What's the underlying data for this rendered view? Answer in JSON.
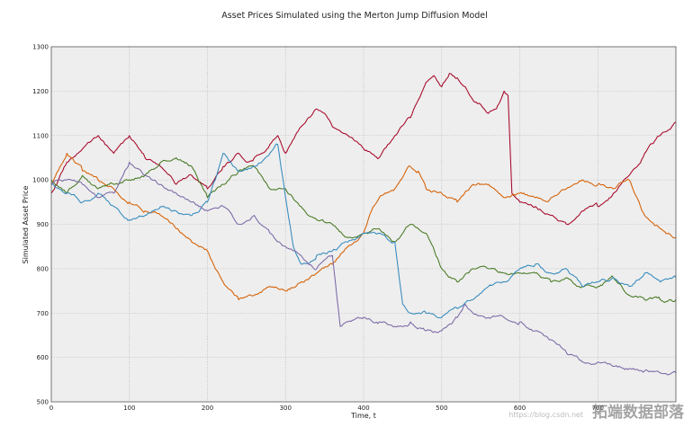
{
  "watermark": {
    "url": "https://blog.csdn.net",
    "text": "拓端数据部落"
  },
  "chart_data": {
    "type": "line",
    "title": "Asset Prices Simulated using the Merton Jump Diffusion Model",
    "xlabel": "Time, t",
    "ylabel": "Simulated Asset Price",
    "xlim": [
      0,
      800
    ],
    "ylim": [
      500,
      1300
    ],
    "xticks": [
      0,
      100,
      200,
      300,
      400,
      500,
      600,
      700
    ],
    "yticks": [
      500,
      600,
      700,
      800,
      900,
      1000,
      1100,
      1200,
      1300
    ],
    "grid": true,
    "background": "#eeeeee",
    "series": [
      {
        "color": "#a60628",
        "x": [
          0,
          20,
          40,
          60,
          80,
          100,
          120,
          140,
          160,
          180,
          200,
          220,
          240,
          250,
          260,
          270,
          280,
          290,
          300,
          320,
          340,
          350,
          360,
          370,
          380,
          400,
          420,
          440,
          460,
          470,
          480,
          490,
          500,
          510,
          520,
          530,
          540,
          550,
          560,
          570,
          580,
          585,
          590,
          595,
          600,
          620,
          640,
          660,
          670,
          680,
          700,
          720,
          740,
          760,
          780,
          800
        ],
        "values": [
          970,
          1040,
          1070,
          1100,
          1060,
          1100,
          1050,
          1030,
          990,
          1010,
          980,
          1030,
          1060,
          1040,
          1050,
          1060,
          1080,
          1100,
          1060,
          1120,
          1160,
          1150,
          1120,
          1110,
          1100,
          1070,
          1050,
          1100,
          1140,
          1180,
          1220,
          1235,
          1210,
          1240,
          1230,
          1210,
          1180,
          1170,
          1150,
          1160,
          1200,
          1190,
          970,
          960,
          950,
          940,
          920,
          900,
          910,
          930,
          940,
          970,
          1010,
          1060,
          1100,
          1130
        ]
      },
      {
        "color": "#d55e00",
        "x": [
          0,
          20,
          40,
          60,
          80,
          100,
          120,
          140,
          160,
          180,
          200,
          210,
          220,
          240,
          260,
          280,
          300,
          320,
          340,
          360,
          380,
          400,
          410,
          420,
          440,
          460,
          470,
          480,
          500,
          520,
          540,
          560,
          580,
          600,
          620,
          640,
          660,
          680,
          700,
          720,
          740,
          760,
          780,
          800
        ],
        "values": [
          990,
          1060,
          1020,
          1000,
          980,
          950,
          930,
          920,
          890,
          860,
          840,
          800,
          770,
          730,
          740,
          760,
          750,
          770,
          790,
          810,
          850,
          880,
          930,
          960,
          980,
          1030,
          1020,
          980,
          970,
          950,
          990,
          990,
          960,
          970,
          960,
          960,
          980,
          1000,
          990,
          980,
          1000,
          920,
          890,
          870
        ]
      },
      {
        "color": "#467821",
        "x": [
          0,
          20,
          40,
          60,
          80,
          100,
          120,
          140,
          160,
          180,
          200,
          220,
          240,
          260,
          280,
          300,
          320,
          340,
          360,
          380,
          400,
          420,
          440,
          460,
          480,
          500,
          520,
          540,
          560,
          580,
          600,
          620,
          640,
          660,
          680,
          700,
          720,
          740,
          760,
          780,
          800
        ],
        "values": [
          1000,
          970,
          1010,
          980,
          990,
          1000,
          1010,
          1040,
          1050,
          1030,
          960,
          990,
          1020,
          1030,
          980,
          980,
          940,
          910,
          900,
          870,
          880,
          890,
          860,
          900,
          880,
          800,
          770,
          800,
          800,
          790,
          790,
          790,
          770,
          780,
          760,
          760,
          780,
          740,
          730,
          730,
          730
        ]
      },
      {
        "color": "#348abd",
        "x": [
          0,
          20,
          40,
          60,
          80,
          100,
          120,
          140,
          160,
          180,
          200,
          210,
          220,
          240,
          260,
          280,
          290,
          300,
          310,
          320,
          340,
          360,
          380,
          400,
          420,
          440,
          450,
          460,
          480,
          500,
          520,
          540,
          560,
          580,
          600,
          620,
          640,
          660,
          680,
          700,
          720,
          740,
          760,
          780,
          800
        ],
        "values": [
          990,
          970,
          950,
          970,
          940,
          910,
          920,
          940,
          930,
          920,
          950,
          1000,
          1060,
          1020,
          1030,
          1060,
          1080,
          960,
          850,
          810,
          830,
          840,
          860,
          880,
          880,
          860,
          720,
          700,
          700,
          690,
          710,
          730,
          760,
          770,
          800,
          810,
          790,
          800,
          760,
          770,
          780,
          760,
          790,
          770,
          780
        ]
      },
      {
        "color": "#7a68a6",
        "x": [
          0,
          20,
          40,
          60,
          80,
          100,
          120,
          140,
          160,
          180,
          200,
          220,
          240,
          260,
          280,
          300,
          320,
          340,
          350,
          360,
          370,
          380,
          400,
          420,
          440,
          460,
          480,
          500,
          520,
          530,
          540,
          560,
          580,
          600,
          620,
          640,
          660,
          680,
          700,
          720,
          740,
          760,
          780,
          800
        ],
        "values": [
          990,
          1000,
          990,
          960,
          970,
          1040,
          1010,
          990,
          970,
          950,
          930,
          940,
          900,
          920,
          880,
          850,
          830,
          800,
          820,
          830,
          670,
          680,
          690,
          680,
          670,
          680,
          660,
          660,
          690,
          720,
          700,
          690,
          690,
          680,
          660,
          640,
          610,
          590,
          590,
          580,
          575,
          570,
          565,
          565
        ]
      }
    ]
  }
}
